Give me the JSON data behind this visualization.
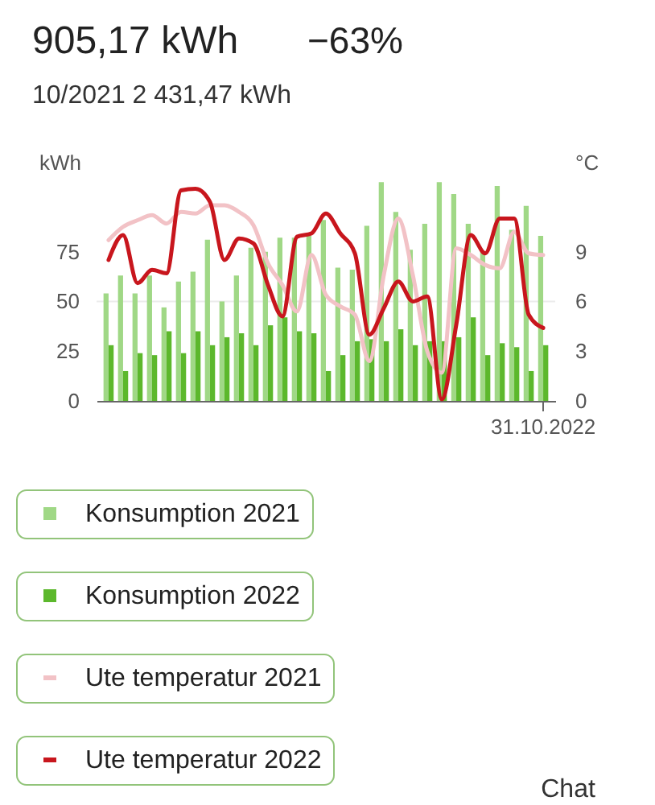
{
  "chart_data": {
    "type": "bar",
    "title": "905,17 kWh",
    "subtitle": "10/2021 2 431,47 kWh",
    "annotations": [
      "−63%",
      "Chat"
    ],
    "ylabel": "kWh",
    "y2label": "°C",
    "categories": [
      null,
      null,
      null,
      null,
      null,
      null,
      null,
      null,
      null,
      null,
      null,
      null,
      null,
      null,
      null,
      null,
      null,
      null,
      null,
      null,
      null,
      null,
      null,
      null,
      null,
      null,
      null,
      null,
      null,
      null,
      "31.10.2022"
    ],
    "series": [
      {
        "name": "Konsumption 2021",
        "color": "#a0d886",
        "values": [
          54,
          63,
          54,
          63,
          47,
          60,
          65,
          81,
          50,
          63,
          77,
          75,
          82,
          82,
          83,
          91,
          67,
          66,
          88,
          110,
          95,
          76,
          89,
          110,
          104,
          89,
          75,
          108,
          86,
          98,
          83
        ]
      },
      {
        "name": "Konsumption 2022",
        "color": "#5cb82c",
        "values": [
          28,
          15,
          24,
          23,
          35,
          24,
          35,
          28,
          32,
          34,
          28,
          38,
          42,
          35,
          34,
          15,
          23,
          30,
          31,
          30,
          36,
          28,
          30,
          30,
          32,
          42,
          23,
          29,
          27,
          15,
          28
        ]
      },
      {
        "name": "Ute temperatur 2021",
        "type": "line",
        "axis": "y2",
        "color": "#f2c2c6",
        "values": [
          9.7,
          10.5,
          10.9,
          11.2,
          10.7,
          11.4,
          11.3,
          11.8,
          11.8,
          11.4,
          10.6,
          8.3,
          7.0,
          5.4,
          8.8,
          6.4,
          5.7,
          5.2,
          2.4,
          7.6,
          11.0,
          7.6,
          3.0,
          1.7,
          9.2,
          8.8,
          8.2,
          8.0,
          10.2,
          8.9,
          8.8
        ]
      },
      {
        "name": "Ute temperatur 2022",
        "type": "line",
        "axis": "y2",
        "color": "#c8161d",
        "values": [
          8.5,
          10.0,
          7.1,
          7.9,
          7.7,
          12.7,
          12.8,
          12.0,
          8.5,
          9.8,
          9.5,
          7.0,
          5.1,
          9.9,
          10.1,
          11.3,
          10.1,
          8.9,
          4.0,
          5.6,
          7.2,
          6.0,
          6.3,
          0.1,
          4.6,
          10.0,
          8.9,
          11.0,
          11.0,
          5.2,
          4.4
        ]
      }
    ],
    "ylim": [
      0,
      112.5
    ],
    "yticks": [
      0,
      25,
      50,
      75
    ],
    "y2lim": [
      0,
      13.5
    ],
    "y2ticks": [
      0,
      3,
      6,
      9
    ],
    "ref_lines": [
      {
        "axis": "y",
        "value": 50,
        "color": "#ececec"
      }
    ],
    "legend": "bottom",
    "line_style": "solid"
  }
}
